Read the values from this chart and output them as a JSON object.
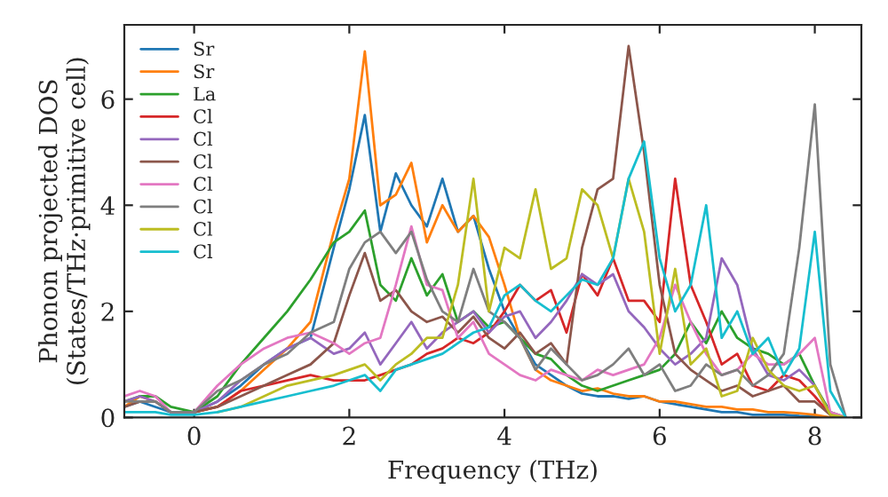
{
  "chart_data": {
    "type": "line",
    "xlabel": "Frequency (THz)",
    "ylabel": "Phonon projected DOS\n(States/THz·primitive cell)",
    "x": [
      -0.9,
      -0.7,
      -0.5,
      -0.3,
      0,
      0.3,
      0.6,
      0.9,
      1.2,
      1.5,
      1.8,
      2.0,
      2.2,
      2.4,
      2.6,
      2.8,
      3.0,
      3.2,
      3.4,
      3.6,
      3.8,
      4.0,
      4.2,
      4.4,
      4.6,
      4.8,
      5.0,
      5.2,
      5.4,
      5.6,
      5.8,
      6.0,
      6.2,
      6.4,
      6.6,
      6.8,
      7.0,
      7.2,
      7.4,
      7.6,
      7.8,
      8.0,
      8.2,
      8.4
    ],
    "xlim": [
      -0.9,
      8.6
    ],
    "ylim": [
      0,
      7.4
    ],
    "xticks": [
      0,
      2,
      4,
      6,
      8
    ],
    "yticks": [
      0,
      2,
      4,
      6
    ],
    "grid": false,
    "legend": "top left",
    "marker": "none",
    "line_style": "solid",
    "series": [
      {
        "name": "Sr",
        "color": "#1f77b4",
        "values": [
          0.2,
          0.3,
          0.2,
          0.1,
          0.1,
          0.3,
          0.6,
          1.0,
          1.3,
          1.5,
          3.2,
          4.3,
          5.7,
          3.5,
          4.6,
          4.0,
          3.6,
          4.5,
          3.5,
          3.8,
          2.8,
          2.0,
          1.5,
          1.0,
          0.8,
          0.6,
          0.45,
          0.4,
          0.4,
          0.35,
          0.4,
          0.3,
          0.25,
          0.2,
          0.15,
          0.1,
          0.1,
          0.05,
          0.05,
          0.05,
          0.03,
          0.02,
          0,
          0
        ]
      },
      {
        "name": "Sr",
        "color": "#ff7f0e",
        "values": [
          0.2,
          0.4,
          0.3,
          0.1,
          0.1,
          0.2,
          0.5,
          0.9,
          1.3,
          1.8,
          3.5,
          4.5,
          6.9,
          4.0,
          4.2,
          4.8,
          3.3,
          4.0,
          3.5,
          3.8,
          3.4,
          2.5,
          1.5,
          0.9,
          0.7,
          0.6,
          0.5,
          0.55,
          0.45,
          0.4,
          0.4,
          0.3,
          0.3,
          0.25,
          0.2,
          0.2,
          0.15,
          0.15,
          0.1,
          0.1,
          0.08,
          0.05,
          0,
          0
        ]
      },
      {
        "name": "La",
        "color": "#2ca02c",
        "values": [
          0.3,
          0.4,
          0.4,
          0.2,
          0.1,
          0.4,
          1.0,
          1.5,
          2.0,
          2.6,
          3.3,
          3.5,
          3.9,
          2.5,
          2.2,
          3.0,
          2.3,
          2.7,
          1.8,
          2.0,
          1.7,
          1.8,
          1.5,
          1.2,
          1.1,
          0.8,
          0.6,
          0.5,
          0.6,
          0.7,
          0.8,
          0.9,
          1.2,
          1.8,
          1.4,
          2.0,
          1.5,
          1.3,
          1.2,
          1.0,
          1.2,
          0.6,
          0.1,
          0
        ]
      },
      {
        "name": "Cl",
        "color": "#d62728",
        "values": [
          null,
          null,
          null,
          0.1,
          0.1,
          0.2,
          0.5,
          0.6,
          0.7,
          0.8,
          0.7,
          0.7,
          0.7,
          0.8,
          0.9,
          1.0,
          1.2,
          1.3,
          1.5,
          1.4,
          1.6,
          2.0,
          2.5,
          2.2,
          2.4,
          1.6,
          2.7,
          2.3,
          3.0,
          2.2,
          2.2,
          1.8,
          4.5,
          2.5,
          1.8,
          1.0,
          1.2,
          0.6,
          0.5,
          0.8,
          0.7,
          0.4,
          0.05,
          0
        ]
      },
      {
        "name": "Cl",
        "color": "#9467bd",
        "values": [
          0.3,
          0.4,
          0.3,
          0.1,
          0.1,
          0.3,
          0.7,
          1.0,
          1.3,
          1.5,
          1.2,
          1.3,
          1.6,
          1.0,
          1.4,
          1.8,
          1.3,
          1.6,
          1.8,
          2.0,
          1.6,
          1.9,
          2.0,
          1.5,
          1.8,
          2.2,
          2.7,
          2.5,
          2.7,
          2.0,
          1.7,
          1.3,
          1.0,
          1.2,
          1.5,
          3.0,
          2.5,
          1.3,
          0.8,
          0.7,
          0.9,
          0.6,
          0.05,
          0
        ]
      },
      {
        "name": "Cl",
        "color": "#8c564b",
        "values": [
          0.2,
          0.3,
          0.3,
          0.1,
          0.1,
          0.2,
          0.4,
          0.6,
          0.8,
          1.0,
          1.4,
          2.3,
          3.1,
          2.2,
          2.4,
          2.0,
          1.8,
          1.9,
          1.6,
          1.9,
          1.5,
          1.3,
          1.6,
          1.2,
          1.4,
          1.0,
          3.2,
          4.3,
          4.5,
          7.0,
          5.0,
          2.5,
          1.2,
          0.9,
          0.7,
          0.5,
          0.6,
          0.4,
          0.5,
          0.6,
          0.3,
          0.3,
          0.05,
          0
        ]
      },
      {
        "name": "Cl",
        "color": "#e377c2",
        "values": [
          0.4,
          0.5,
          0.4,
          0.1,
          0.1,
          0.6,
          1.0,
          1.3,
          1.5,
          1.6,
          1.4,
          1.2,
          1.4,
          1.5,
          2.5,
          3.6,
          2.5,
          2.4,
          1.5,
          1.8,
          1.2,
          1.0,
          0.8,
          0.7,
          0.9,
          0.8,
          0.7,
          0.9,
          0.8,
          0.9,
          1.0,
          1.5,
          2.5,
          1.8,
          1.2,
          0.8,
          0.9,
          1.2,
          1.0,
          1.0,
          1.2,
          1.5,
          0.1,
          0
        ]
      },
      {
        "name": "Cl",
        "color": "#7f7f7f",
        "values": [
          0.3,
          0.3,
          0.3,
          0.1,
          0.1,
          0.5,
          0.7,
          1.0,
          1.2,
          1.6,
          1.8,
          2.8,
          3.3,
          3.5,
          3.1,
          3.5,
          2.6,
          2.0,
          1.8,
          2.8,
          2.0,
          1.8,
          1.5,
          0.9,
          1.3,
          1.0,
          0.7,
          0.8,
          1.0,
          1.3,
          0.8,
          1.0,
          0.5,
          0.6,
          1.0,
          0.8,
          0.9,
          0.6,
          0.8,
          1.2,
          3.2,
          5.9,
          1.0,
          0
        ]
      },
      {
        "name": "Cl",
        "color": "#bcbd22",
        "values": [
          null,
          null,
          null,
          null,
          null,
          0.1,
          0.2,
          0.4,
          0.6,
          0.7,
          0.8,
          0.9,
          1.0,
          0.7,
          1.0,
          1.2,
          1.5,
          1.5,
          2.5,
          4.5,
          2.0,
          3.2,
          3.0,
          4.3,
          2.8,
          3.0,
          4.3,
          4.0,
          3.0,
          4.5,
          3.5,
          1.2,
          2.8,
          1.0,
          1.3,
          0.4,
          0.5,
          1.5,
          0.9,
          0.6,
          0.5,
          0.6,
          0.05,
          0
        ]
      },
      {
        "name": "Cl",
        "color": "#17becf",
        "values": [
          0.1,
          0.1,
          0.1,
          0.05,
          0.05,
          0.1,
          0.2,
          0.3,
          0.4,
          0.5,
          0.6,
          0.7,
          0.8,
          0.5,
          0.9,
          1.0,
          1.1,
          1.2,
          1.4,
          1.6,
          1.7,
          2.3,
          2.5,
          2.2,
          2.0,
          2.3,
          2.6,
          2.5,
          3.0,
          4.5,
          5.2,
          3.0,
          2.0,
          2.5,
          4.0,
          1.5,
          2.0,
          1.2,
          1.5,
          0.8,
          1.3,
          3.5,
          0.5,
          0
        ]
      }
    ]
  }
}
